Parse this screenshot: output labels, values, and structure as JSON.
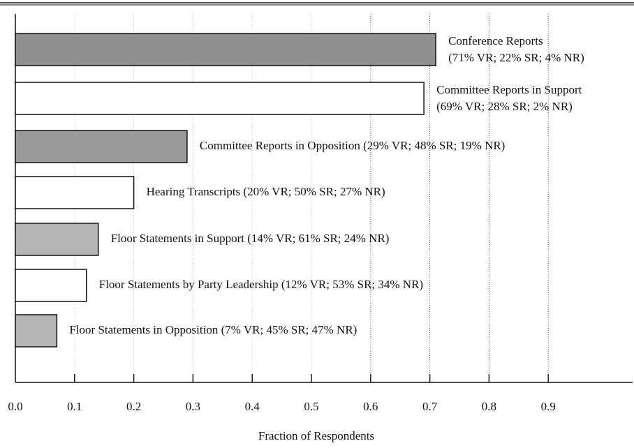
{
  "chart_data": {
    "type": "barh",
    "xlabel": "Fraction of Respondents",
    "categories": [
      "Conference Reports",
      "Committee Reports in Support",
      "Committee Reports in Opposition",
      "Hearing Transcripts",
      "Floor Statements in Support",
      "Floor Statements by Party Leadership",
      "Floor Statements in Opposition"
    ],
    "values": [
      0.71,
      0.69,
      0.29,
      0.2,
      0.14,
      0.12,
      0.07
    ],
    "value_labels": [
      "(71% VR; 22% SR; 4% NR)",
      "(69% VR; 28% SR; 2% NR)",
      "(29% VR; 48% SR; 19% NR)",
      "(20% VR; 50% SR; 27% NR)",
      "(14% VR; 61% SR; 24% NR)",
      "(12% VR; 53% SR; 34% NR)",
      "(7% VR; 45% SR; 47% NR)"
    ],
    "colors": [
      "#8f8f8f",
      "#ffffff",
      "#9a9a9a",
      "#ffffff",
      "#b5b5b5",
      "#ffffff",
      "#b5b5b5"
    ],
    "xlim": [
      0,
      1
    ],
    "xticks": [
      {
        "value": 0,
        "label": "0.0"
      },
      0.1,
      0.2,
      0.3,
      0.4,
      0.5,
      0.6,
      0.7,
      0.8,
      0.9
    ],
    "grid": true
  }
}
